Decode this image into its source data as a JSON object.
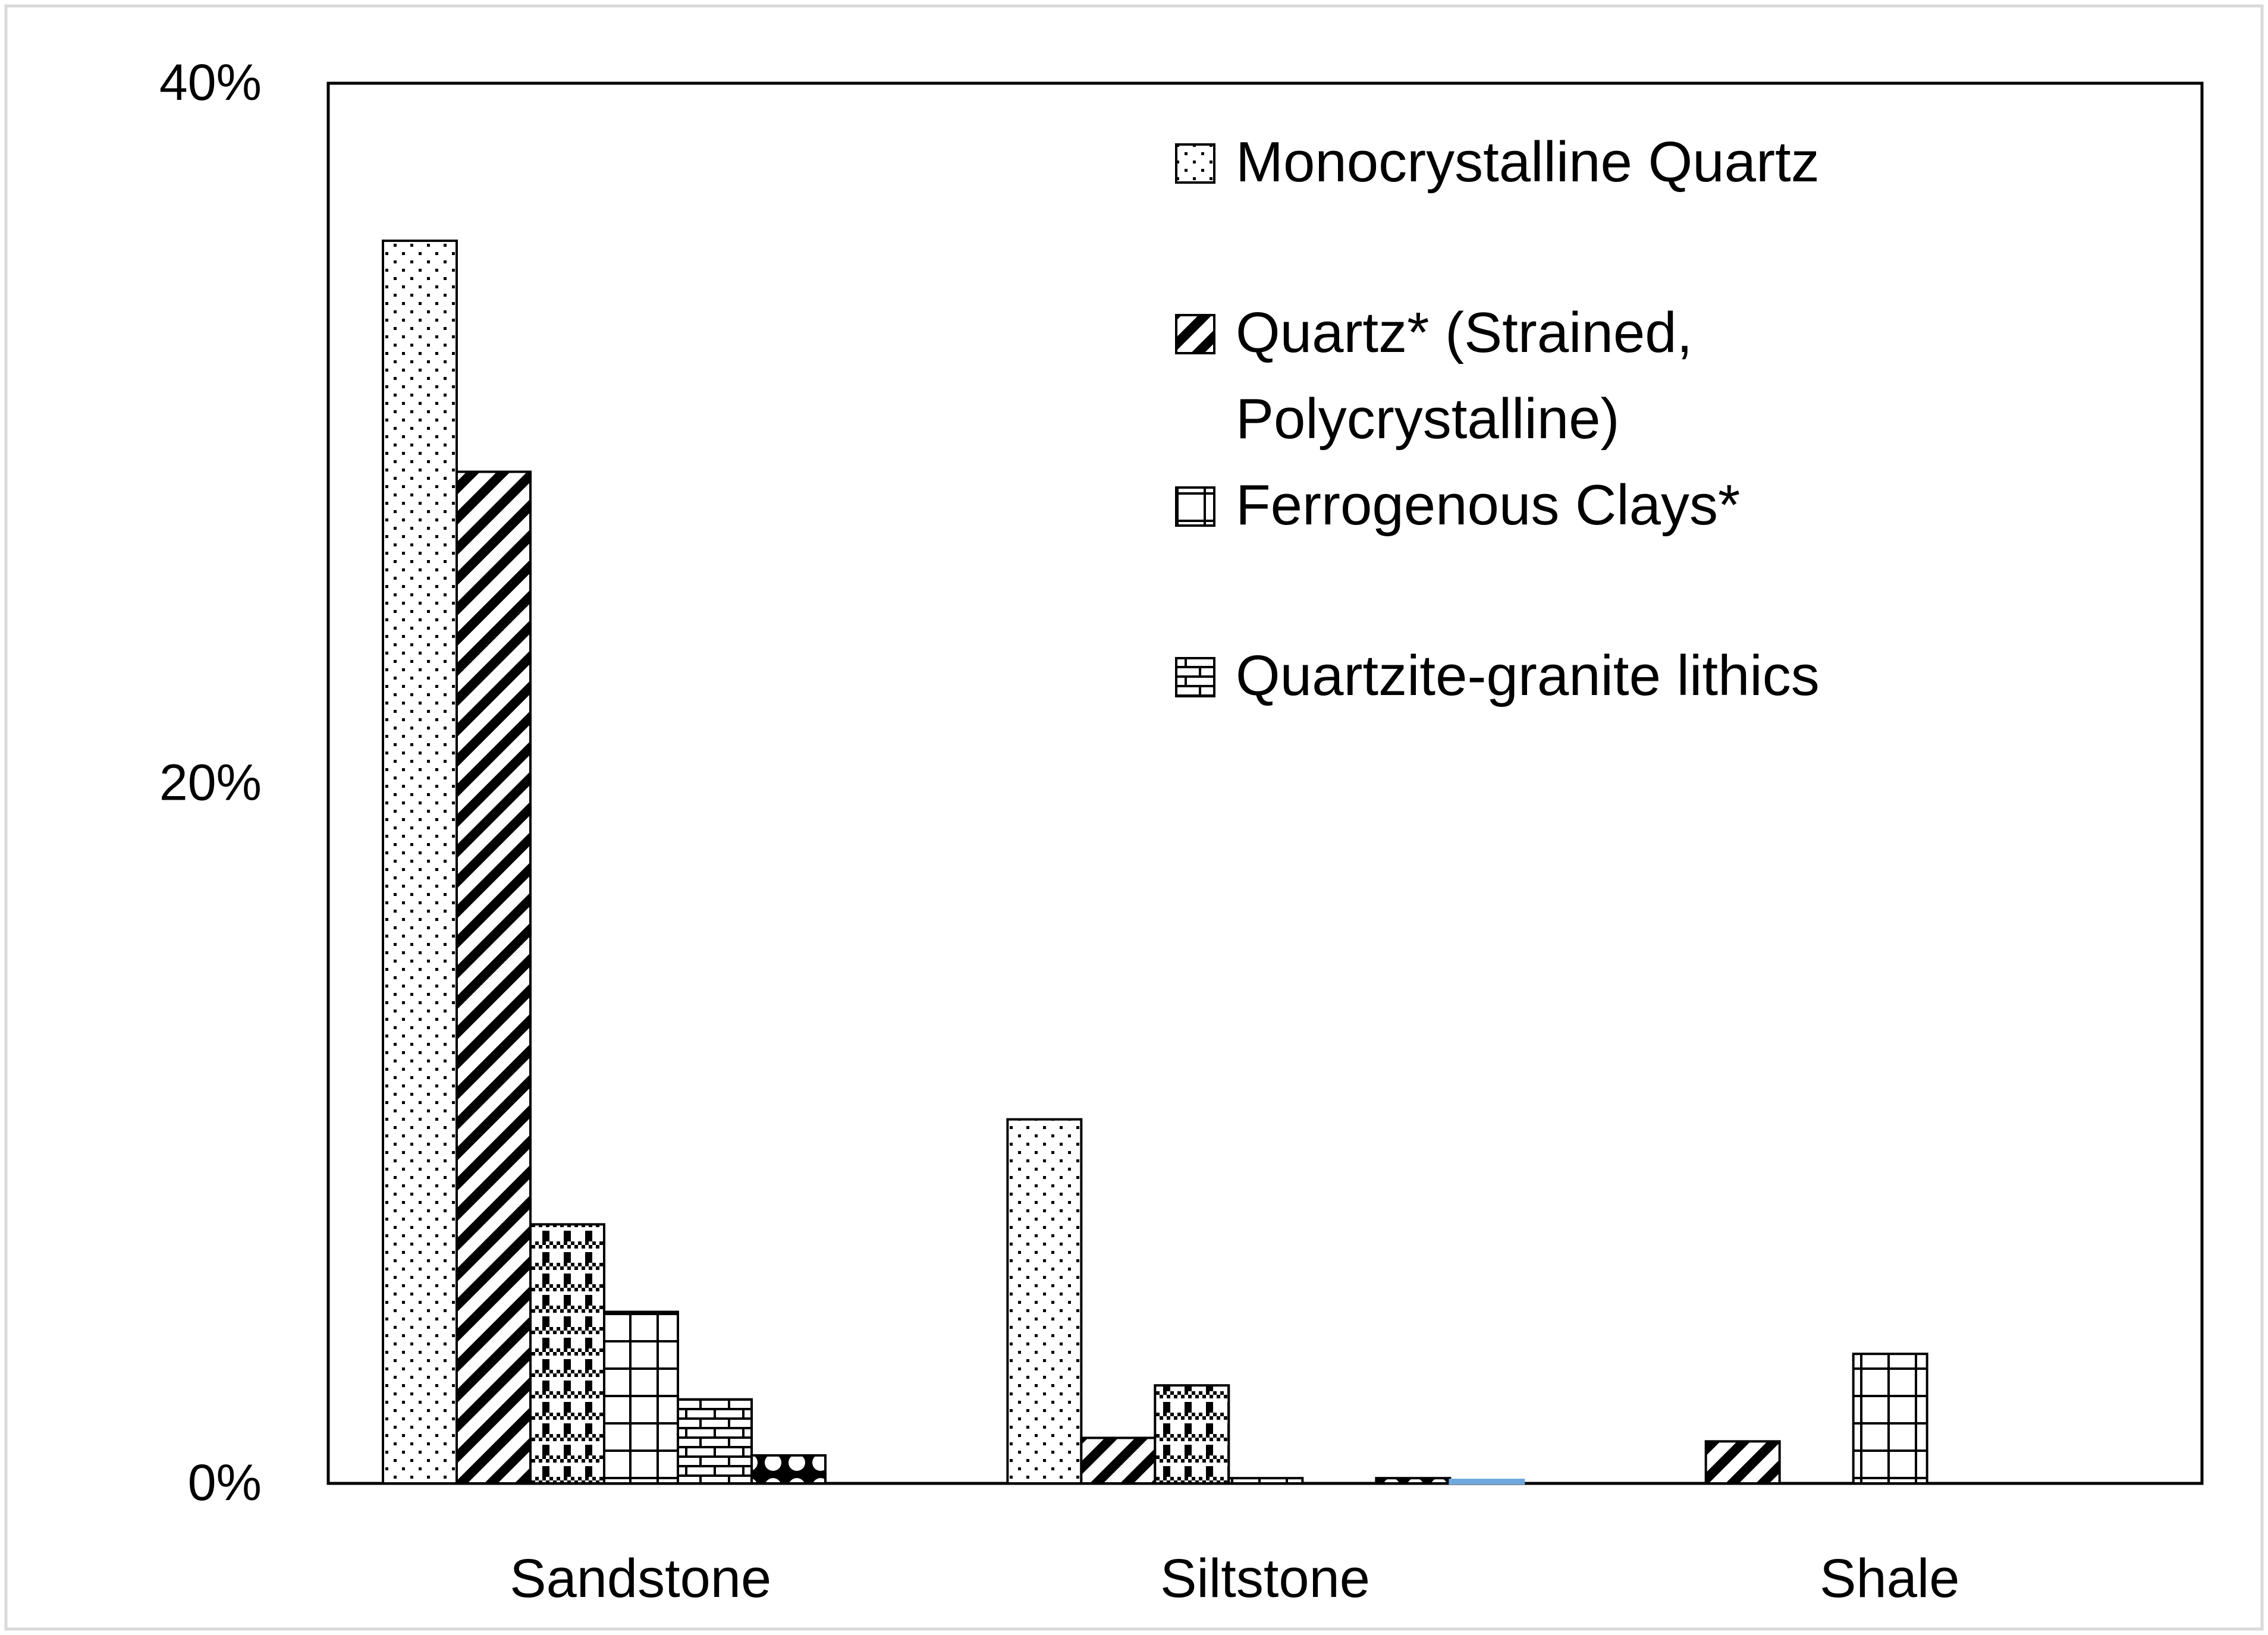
{
  "chart_data": {
    "type": "bar",
    "title": "",
    "xlabel": "",
    "ylabel": "",
    "categories": [
      "Sandstone",
      "Siltstone",
      "Shale"
    ],
    "ylim": [
      0,
      40
    ],
    "yticks": [
      {
        "value": 0,
        "label": "0%"
      },
      {
        "value": 20,
        "label": "20%"
      },
      {
        "value": 40,
        "label": "40%"
      }
    ],
    "grid": false,
    "legend_position": "top-right",
    "series": [
      {
        "name": "Monocrystalline Quartz",
        "pattern": "dots",
        "color": "#000000",
        "values": [
          35.5,
          10.4,
          null
        ]
      },
      {
        "name": "Quartz* (Strained, Polycrystalline)",
        "pattern": "diagonal-stripes",
        "color": "#000000",
        "values": [
          28.9,
          1.3,
          1.2
        ]
      },
      {
        "pattern": "checker-dots",
        "color": "#000000",
        "values": [
          7.4,
          2.8,
          null
        ]
      },
      {
        "name": "Ferrogenous Clays*",
        "pattern": "grid",
        "color": "#000000",
        "values": [
          4.9,
          0.15,
          3.7
        ]
      },
      {
        "name": "Quartzite-granite lithics",
        "pattern": "brick",
        "color": "#000000",
        "values": [
          2.4,
          null,
          null
        ]
      },
      {
        "pattern": "diamonds",
        "color": "#000000",
        "values": [
          0.8,
          0.15,
          null
        ]
      },
      {
        "color": "#6fa8dc",
        "values": [
          null,
          0.1,
          null
        ]
      }
    ]
  }
}
